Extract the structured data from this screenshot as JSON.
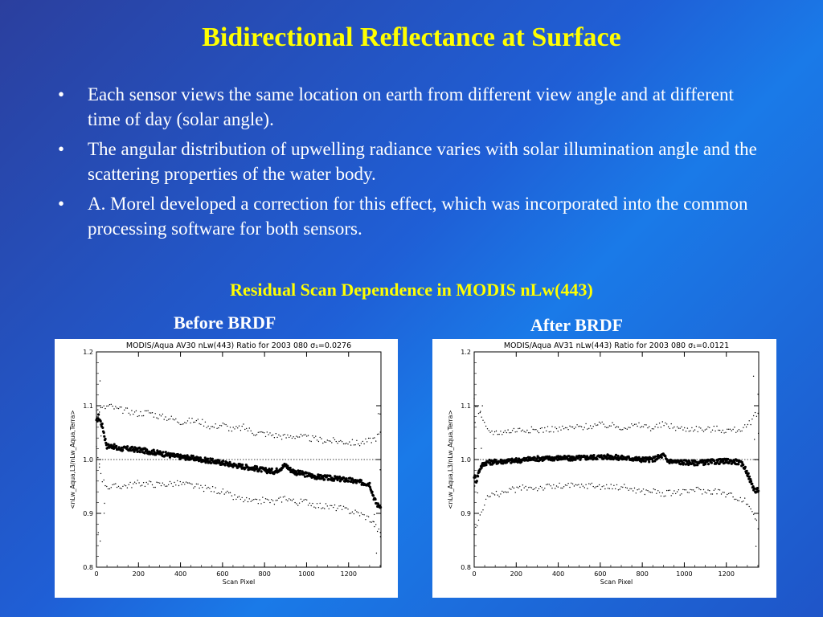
{
  "slide": {
    "title": "Bidirectional Reflectance at Surface",
    "bullets": [
      "Each sensor views the same location on earth from different view angle and at different time of day (solar angle).",
      "The angular distribution of upwelling radiance varies with solar illumination angle and the scattering properties of the water body.",
      "A. Morel developed a correction for this effect, which was incorporated into the common processing software for both sensors."
    ],
    "bullet_symbol": "•",
    "subtitle": "Residual Scan Dependence in MODIS nLw(443)",
    "left_label": "Before BRDF",
    "right_label": "After BRDF"
  },
  "colors": {
    "title": "#ffff00",
    "text": "#ffffff",
    "background_start": "#2b3f9e",
    "background_mid": "#1a7ae8"
  },
  "chart_data": [
    {
      "type": "scatter",
      "title": "MODIS/Aqua AV30 nLw(443) Ratio for 2003 080 σ₁=0.0276",
      "xlabel": "Scan Pixel",
      "ylabel": "<nLw_Aqua,L3/nLw_Aqua,Terra>",
      "xlim": [
        0,
        1354
      ],
      "ylim": [
        0.8,
        1.2
      ],
      "xticks": [
        0,
        200,
        400,
        600,
        800,
        1000,
        1200
      ],
      "yticks": [
        0.8,
        0.9,
        1.0,
        1.1,
        1.2
      ],
      "reference_line": 1.0,
      "series": [
        {
          "role": "mean",
          "x": [
            0,
            10,
            20,
            30,
            40,
            50,
            60,
            80,
            100,
            150,
            200,
            250,
            300,
            350,
            400,
            450,
            500,
            550,
            600,
            650,
            700,
            750,
            800,
            850,
            880,
            900,
            920,
            950,
            1000,
            1050,
            1100,
            1150,
            1200,
            1250,
            1300,
            1320,
            1330,
            1340,
            1354
          ],
          "y": [
            1.07,
            1.08,
            1.07,
            1.06,
            1.04,
            1.025,
            1.025,
            1.025,
            1.02,
            1.02,
            1.018,
            1.015,
            1.012,
            1.008,
            1.005,
            1.003,
            1.0,
            0.997,
            0.994,
            0.99,
            0.987,
            0.984,
            0.98,
            0.978,
            0.985,
            0.99,
            0.982,
            0.976,
            0.972,
            0.968,
            0.966,
            0.964,
            0.962,
            0.958,
            0.955,
            0.93,
            0.92,
            0.915,
            0.915
          ]
        },
        {
          "role": "upper",
          "x": [
            0,
            30,
            60,
            100,
            150,
            200,
            250,
            300,
            350,
            400,
            450,
            500,
            550,
            600,
            650,
            700,
            750,
            800,
            850,
            900,
            950,
            1000,
            1050,
            1100,
            1150,
            1200,
            1250,
            1300,
            1330,
            1354
          ],
          "y": [
            1.09,
            1.095,
            1.1,
            1.093,
            1.09,
            1.085,
            1.088,
            1.08,
            1.077,
            1.07,
            1.072,
            1.07,
            1.06,
            1.065,
            1.055,
            1.06,
            1.05,
            1.048,
            1.045,
            1.042,
            1.044,
            1.04,
            1.037,
            1.035,
            1.034,
            1.032,
            1.03,
            1.035,
            1.04,
            1.05
          ]
        },
        {
          "role": "lower",
          "x": [
            0,
            30,
            60,
            100,
            150,
            200,
            250,
            300,
            350,
            400,
            450,
            500,
            550,
            600,
            650,
            700,
            750,
            800,
            850,
            900,
            950,
            1000,
            1050,
            1100,
            1150,
            1200,
            1250,
            1300,
            1330,
            1354
          ],
          "y": [
            1.02,
            0.96,
            0.948,
            0.95,
            0.952,
            0.956,
            0.955,
            0.953,
            0.955,
            0.955,
            0.952,
            0.947,
            0.945,
            0.94,
            0.93,
            0.925,
            0.92,
            0.925,
            0.92,
            0.93,
            0.92,
            0.922,
            0.915,
            0.912,
            0.91,
            0.905,
            0.9,
            0.89,
            0.875,
            0.86
          ]
        }
      ]
    },
    {
      "type": "scatter",
      "title": "MODIS/Aqua AV31 nLw(443) Ratio for 2003 080 σ₁=0.0121",
      "xlabel": "Scan Pixel",
      "ylabel": "<nLw_Aqua,L3/nLw_Aqua,Terra>",
      "xlim": [
        0,
        1354
      ],
      "ylim": [
        0.8,
        1.2
      ],
      "xticks": [
        0,
        200,
        400,
        600,
        800,
        1000,
        1200
      ],
      "yticks": [
        0.8,
        0.9,
        1.0,
        1.1,
        1.2
      ],
      "reference_line": 1.0,
      "series": [
        {
          "role": "mean",
          "x": [
            0,
            10,
            20,
            30,
            40,
            50,
            60,
            80,
            100,
            150,
            200,
            250,
            300,
            350,
            400,
            450,
            500,
            550,
            600,
            650,
            700,
            750,
            800,
            850,
            880,
            900,
            920,
            950,
            1000,
            1050,
            1100,
            1150,
            1200,
            1250,
            1280,
            1300,
            1320,
            1340,
            1354
          ],
          "y": [
            0.97,
            0.96,
            0.975,
            0.985,
            0.99,
            0.993,
            0.995,
            0.995,
            0.996,
            0.997,
            0.998,
            1.0,
            1.002,
            1.002,
            1.003,
            1.002,
            1.003,
            1.004,
            1.005,
            1.005,
            1.003,
            1.002,
            1.0,
            1.0,
            1.005,
            1.008,
            0.998,
            0.996,
            0.995,
            0.994,
            0.995,
            0.996,
            0.997,
            0.996,
            0.99,
            0.975,
            0.955,
            0.94,
            0.945
          ]
        },
        {
          "role": "upper",
          "x": [
            0,
            30,
            60,
            100,
            150,
            200,
            250,
            300,
            350,
            400,
            450,
            500,
            550,
            600,
            650,
            700,
            750,
            800,
            850,
            900,
            950,
            1000,
            1050,
            1100,
            1150,
            1200,
            1250,
            1300,
            1330,
            1354
          ],
          "y": [
            1.11,
            1.08,
            1.055,
            1.05,
            1.052,
            1.055,
            1.056,
            1.054,
            1.057,
            1.056,
            1.058,
            1.06,
            1.062,
            1.064,
            1.063,
            1.06,
            1.062,
            1.063,
            1.058,
            1.065,
            1.06,
            1.056,
            1.058,
            1.055,
            1.057,
            1.054,
            1.055,
            1.06,
            1.08,
            1.09
          ]
        },
        {
          "role": "lower",
          "x": [
            0,
            30,
            60,
            100,
            150,
            200,
            250,
            300,
            350,
            400,
            450,
            500,
            550,
            600,
            650,
            700,
            750,
            800,
            850,
            900,
            950,
            1000,
            1050,
            1100,
            1150,
            1200,
            1250,
            1300,
            1330,
            1354
          ],
          "y": [
            0.86,
            0.9,
            0.93,
            0.935,
            0.94,
            0.945,
            0.948,
            0.947,
            0.949,
            0.95,
            0.951,
            0.95,
            0.952,
            0.95,
            0.948,
            0.95,
            0.945,
            0.94,
            0.942,
            0.935,
            0.94,
            0.938,
            0.945,
            0.94,
            0.942,
            0.935,
            0.93,
            0.92,
            0.9,
            0.87
          ]
        }
      ]
    }
  ]
}
